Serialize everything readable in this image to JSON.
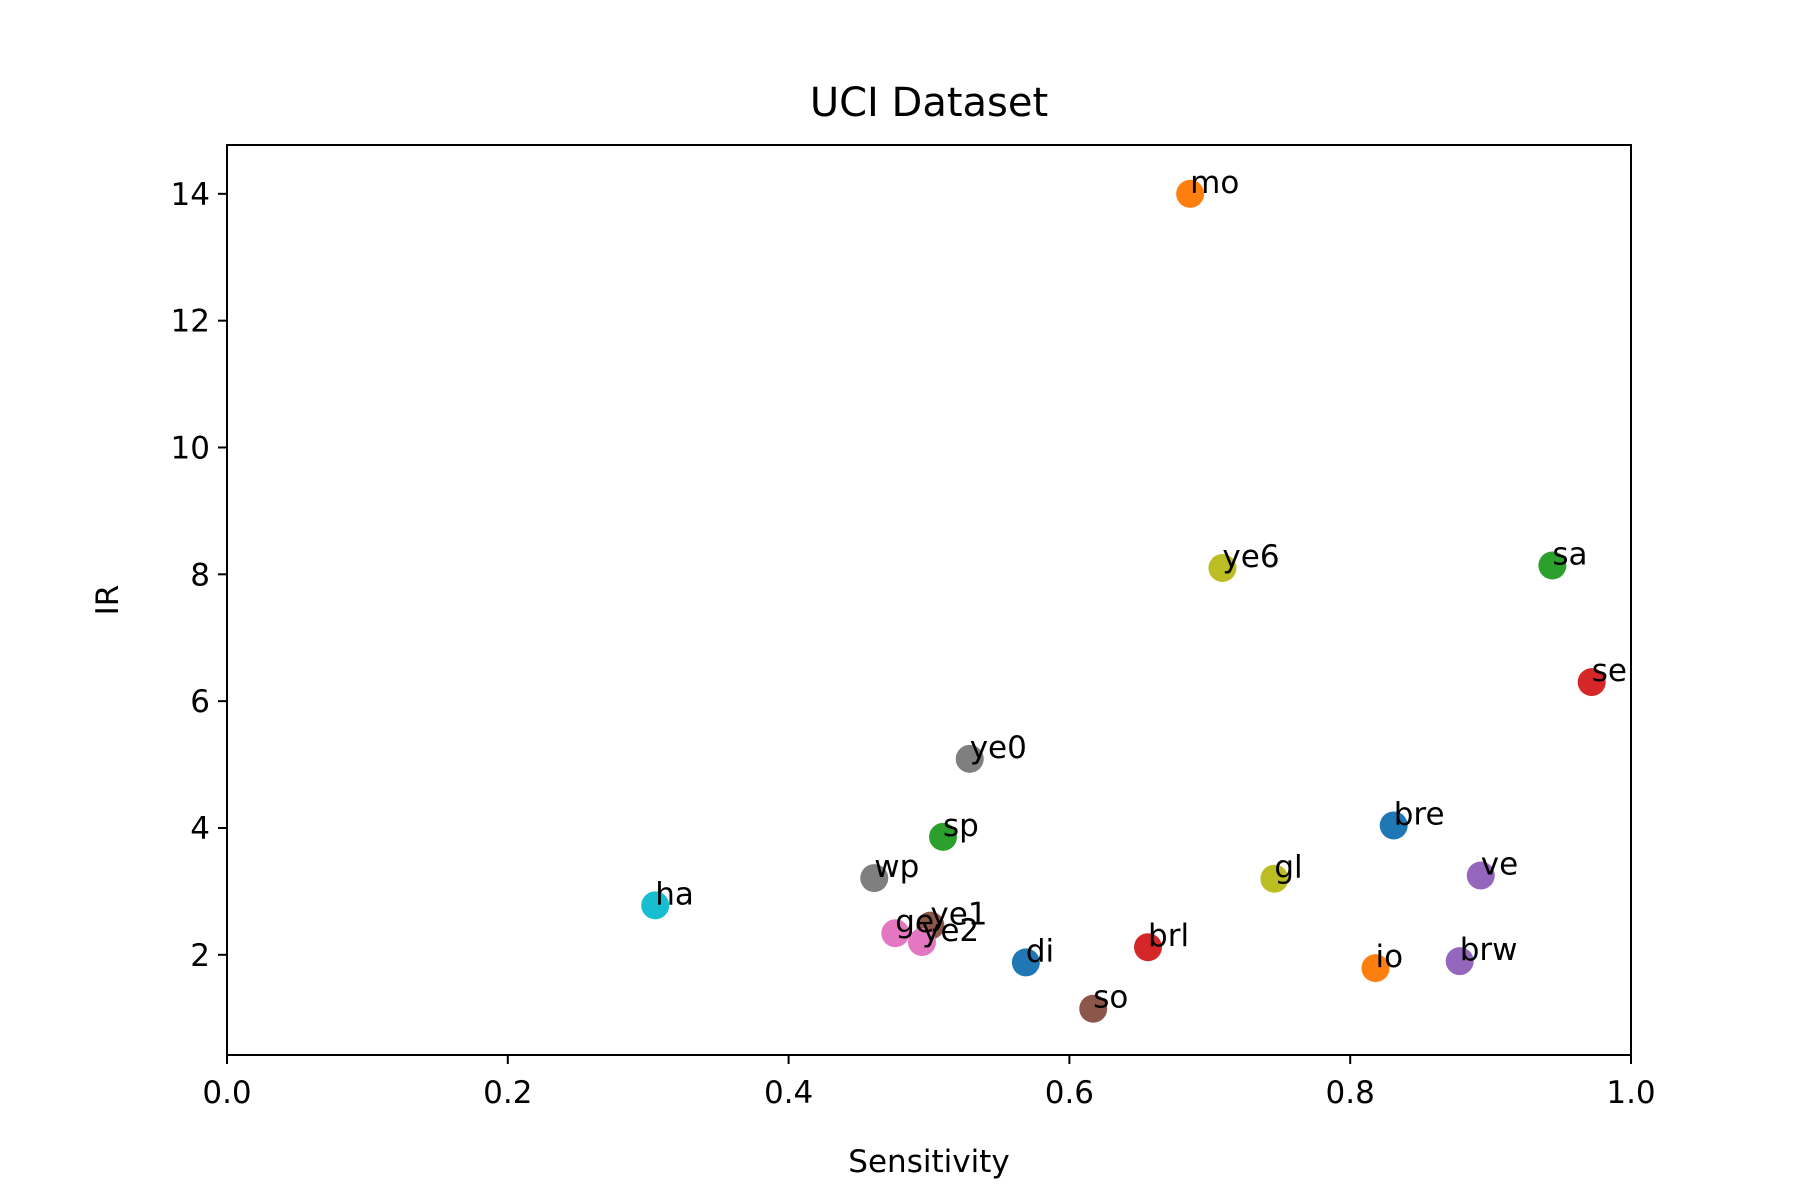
{
  "chart_data": {
    "type": "scatter",
    "title": "UCI Dataset",
    "xlabel": "Sensitivity",
    "ylabel": "IR",
    "xlim": [
      0.0,
      1.0
    ],
    "ylim": [
      0.42,
      14.77
    ],
    "xticks": [
      0.0,
      0.2,
      0.4,
      0.6,
      0.8,
      1.0
    ],
    "xtick_labels": [
      "0.0",
      "0.2",
      "0.4",
      "0.6",
      "0.8",
      "1.0"
    ],
    "yticks": [
      2,
      4,
      6,
      8,
      10,
      12,
      14
    ],
    "ytick_labels": [
      "2",
      "4",
      "6",
      "8",
      "10",
      "12",
      "14"
    ],
    "grid": false,
    "points": [
      {
        "label": "di",
        "x": 0.569,
        "y": 1.88,
        "color": "#1f77b4"
      },
      {
        "label": "io",
        "x": 0.818,
        "y": 1.79,
        "color": "#ff7f0e"
      },
      {
        "label": "sp",
        "x": 0.51,
        "y": 3.86,
        "color": "#2ca02c"
      },
      {
        "label": "brl",
        "x": 0.656,
        "y": 2.12,
        "color": "#d62728"
      },
      {
        "label": "brw",
        "x": 0.878,
        "y": 1.9,
        "color": "#9467bd"
      },
      {
        "label": "so",
        "x": 0.617,
        "y": 1.15,
        "color": "#8c564b"
      },
      {
        "label": "ge",
        "x": 0.476,
        "y": 2.34,
        "color": "#e377c2"
      },
      {
        "label": "wp",
        "x": 0.461,
        "y": 3.21,
        "color": "#7f7f7f"
      },
      {
        "label": "gl",
        "x": 0.746,
        "y": 3.2,
        "color": "#bcbd22"
      },
      {
        "label": "ha",
        "x": 0.305,
        "y": 2.78,
        "color": "#17becf"
      },
      {
        "label": "bre",
        "x": 0.831,
        "y": 4.04,
        "color": "#1f77b4"
      },
      {
        "label": "mo",
        "x": 0.686,
        "y": 14.0,
        "color": "#ff7f0e"
      },
      {
        "label": "sa",
        "x": 0.944,
        "y": 8.14,
        "color": "#2ca02c"
      },
      {
        "label": "se",
        "x": 0.972,
        "y": 6.3,
        "color": "#d62728"
      },
      {
        "label": "ve",
        "x": 0.893,
        "y": 3.25,
        "color": "#9467bd"
      },
      {
        "label": "ye1",
        "x": 0.501,
        "y": 2.46,
        "color": "#8c564b"
      },
      {
        "label": "ye2",
        "x": 0.495,
        "y": 2.2,
        "color": "#e377c2"
      },
      {
        "label": "ye0",
        "x": 0.529,
        "y": 5.09,
        "color": "#7f7f7f"
      },
      {
        "label": "ye6",
        "x": 0.709,
        "y": 8.1,
        "color": "#bcbd22"
      }
    ]
  }
}
